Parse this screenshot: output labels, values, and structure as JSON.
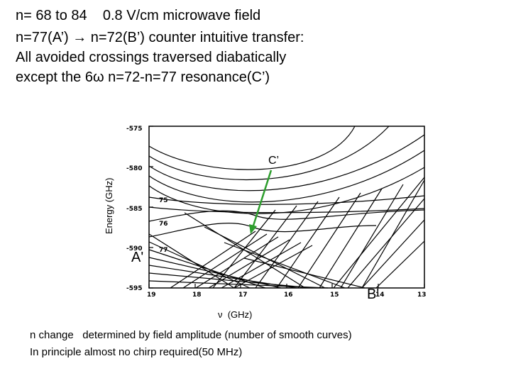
{
  "title_lines": [
    "n= 68 to 84    0.8 V/cm microwave field",
    "n=77(A’) → n=72(B’) counter intuitive transfer:",
    "All avoided crossings traversed diabatically",
    "except the 6ω n=72-n=77 resonance(C’)"
  ],
  "chart_data": {
    "type": "line",
    "ylabel": "Energy (GHz)",
    "xlabel": "ν  (GHz)",
    "xlim": [
      19,
      13
    ],
    "ylim": [
      -595,
      -575
    ],
    "x_ticks": [
      "19",
      "18",
      "17",
      "16",
      "15",
      "14",
      "13"
    ],
    "y_ticks": [
      "-575",
      "-580",
      "-585",
      "-590",
      "-595"
    ],
    "curve_labels": [
      "75",
      "76",
      "77"
    ],
    "annotations": {
      "C": "C’",
      "A": "A'",
      "B": "B'"
    },
    "arrow_color": "#2e9e2e"
  },
  "notes": [
    "n change   determined by field amplitude (number of smooth curves)",
    "In principle almost no chirp required(50 MHz)"
  ]
}
